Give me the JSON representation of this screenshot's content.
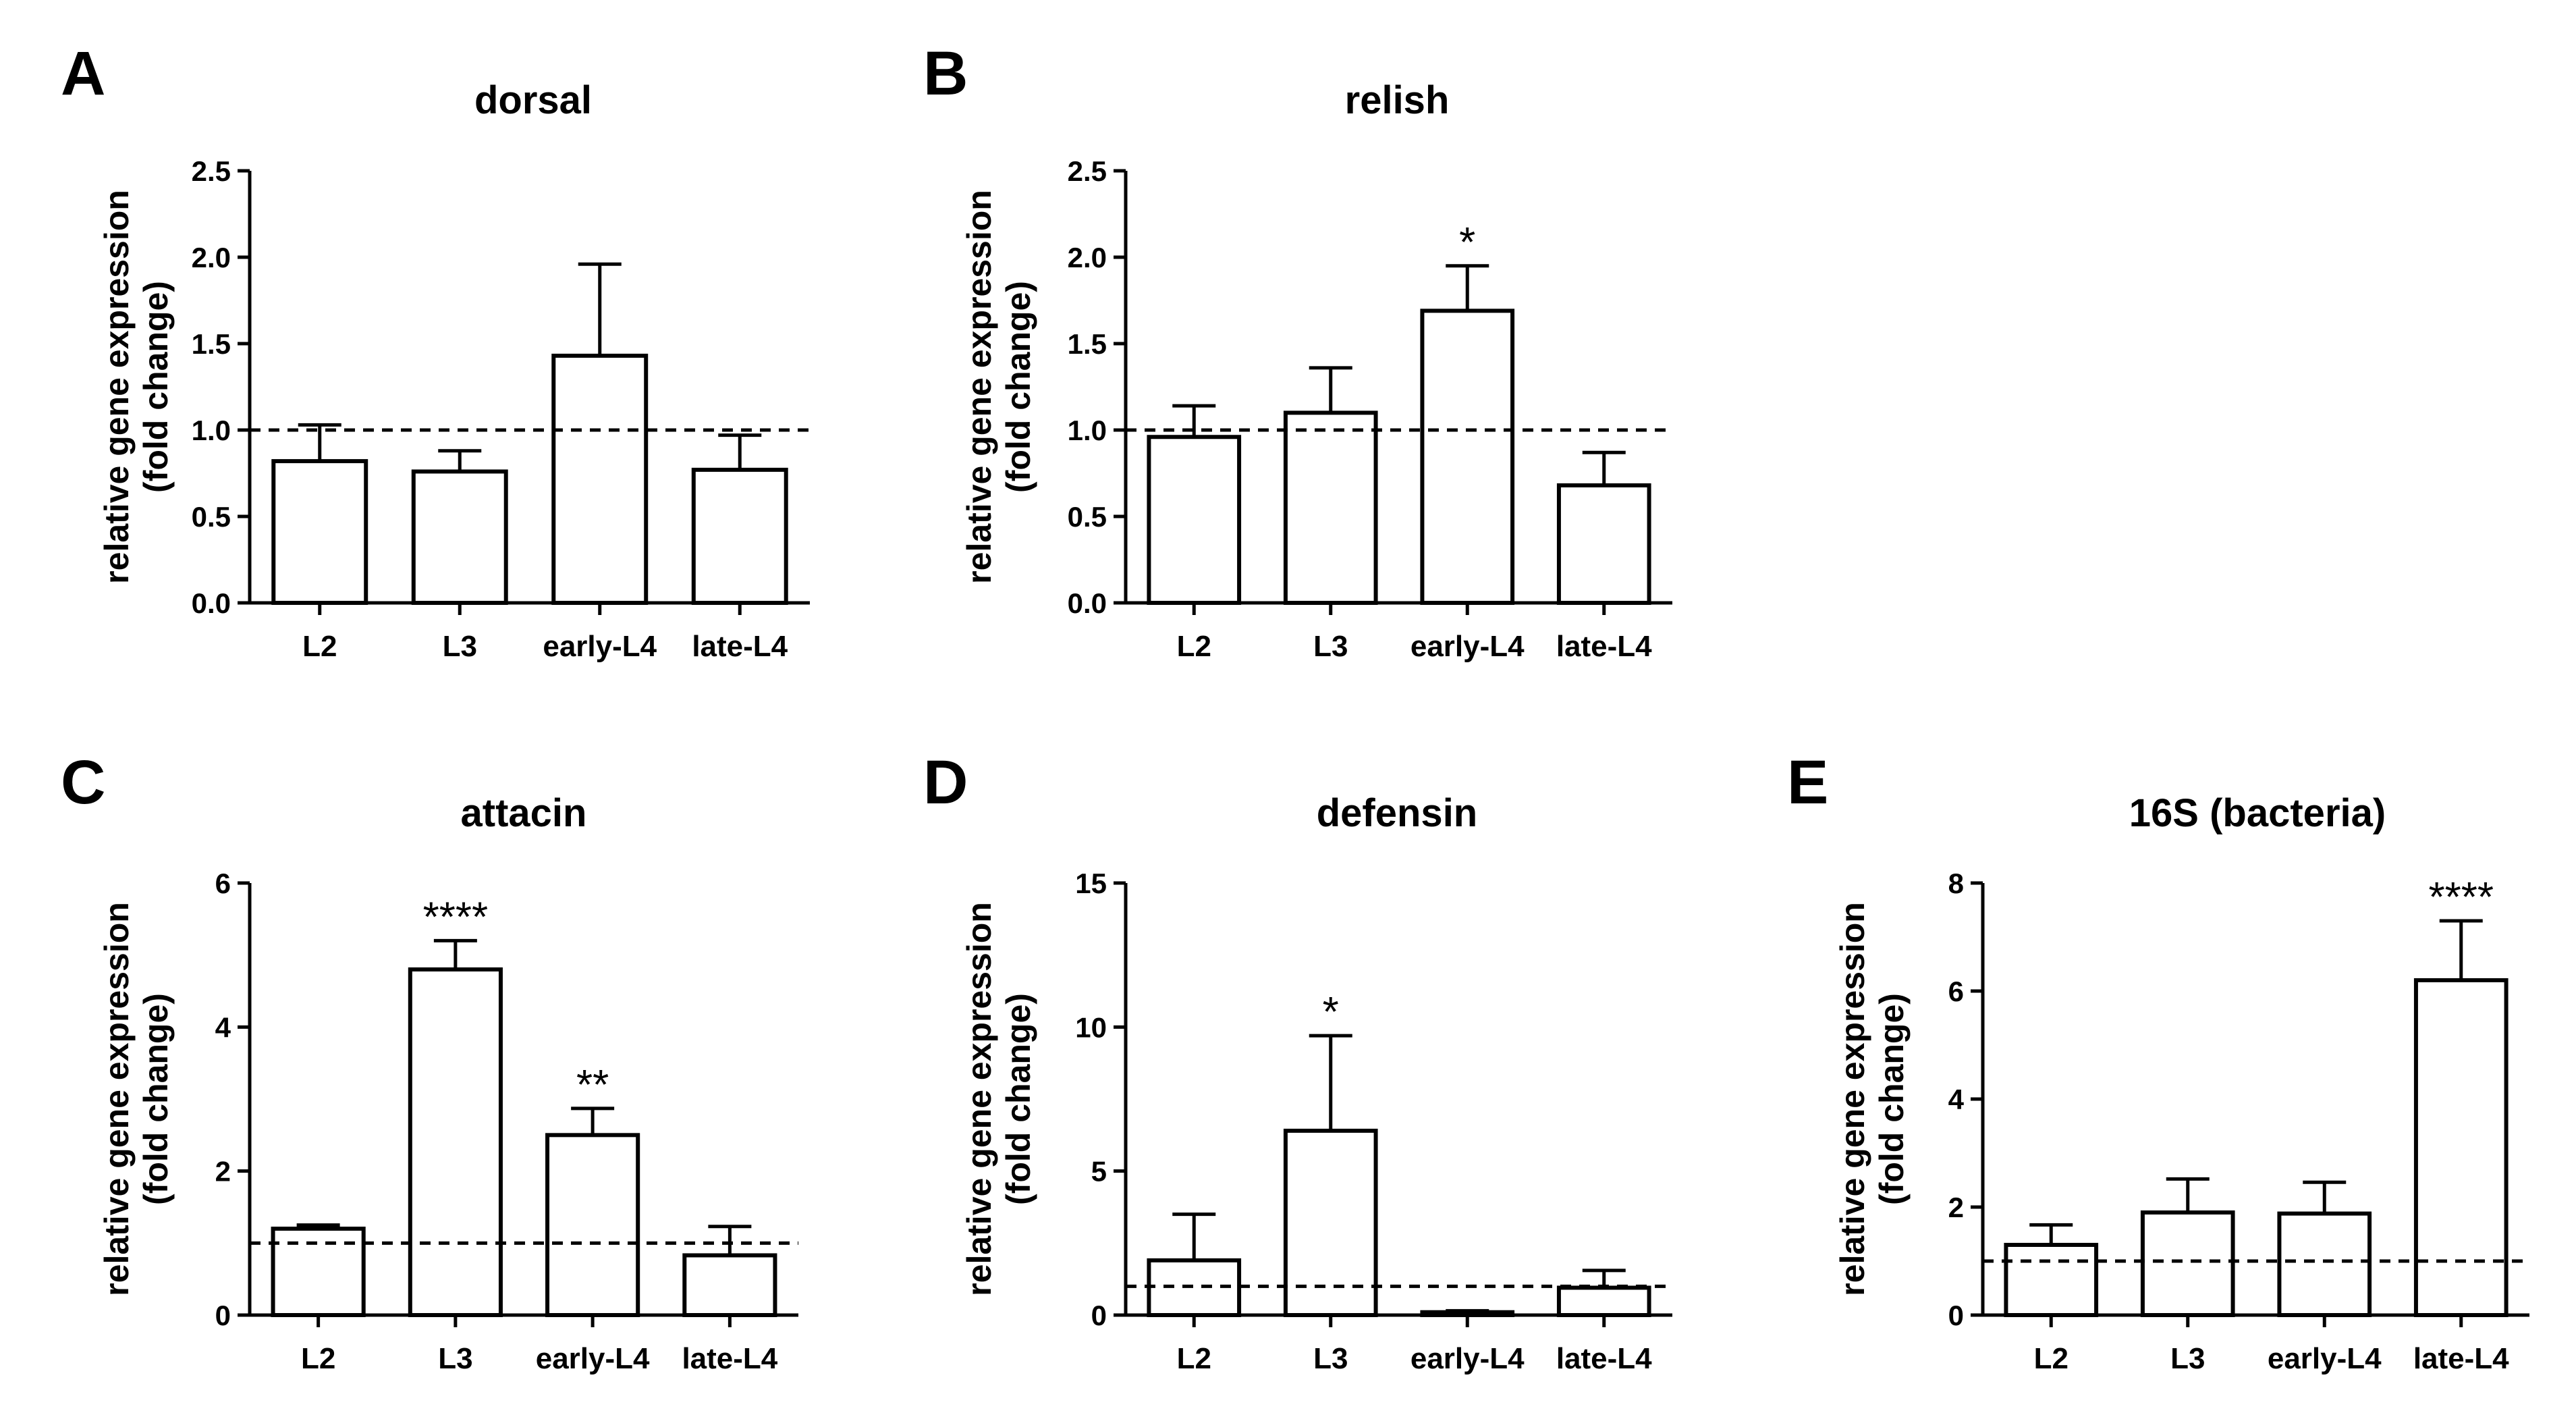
{
  "colors": {
    "ink": "#000000",
    "bar_fill": "#ffffff"
  },
  "chart_data": [
    {
      "letter": "A",
      "type": "bar",
      "title": "dorsal",
      "ylabel": [
        "relative gene expression",
        "(fold change)"
      ],
      "categories": [
        "L2",
        "L3",
        "early-L4",
        "late-L4"
      ],
      "values": [
        0.82,
        0.76,
        1.43,
        0.77
      ],
      "errors": [
        0.21,
        0.12,
        0.53,
        0.2
      ],
      "significance": [
        "",
        "",
        "",
        ""
      ],
      "ylim": [
        0,
        2.5
      ],
      "yticks": [
        0.0,
        0.5,
        1.0,
        1.5,
        2.0,
        2.5
      ],
      "ytick_labels": [
        "0.0",
        "0.5",
        "1.0",
        "1.5",
        "2.0",
        "2.5"
      ],
      "reference_line": 1.0
    },
    {
      "letter": "B",
      "type": "bar",
      "title": "relish",
      "ylabel": [
        "relative gene expression",
        "(fold change)"
      ],
      "categories": [
        "L2",
        "L3",
        "early-L4",
        "late-L4"
      ],
      "values": [
        0.96,
        1.1,
        1.69,
        0.68
      ],
      "errors": [
        0.18,
        0.26,
        0.26,
        0.19
      ],
      "significance": [
        "",
        "",
        "*",
        ""
      ],
      "ylim": [
        0,
        2.5
      ],
      "yticks": [
        0.0,
        0.5,
        1.0,
        1.5,
        2.0,
        2.5
      ],
      "ytick_labels": [
        "0.0",
        "0.5",
        "1.0",
        "1.5",
        "2.0",
        "2.5"
      ],
      "reference_line": 1.0
    },
    {
      "letter": "C",
      "type": "bar",
      "title": "attacin",
      "ylabel": [
        "relative gene expression",
        "(fold change)"
      ],
      "categories": [
        "L2",
        "L3",
        "early-L4",
        "late-L4"
      ],
      "values": [
        1.2,
        4.8,
        2.5,
        0.83
      ],
      "errors": [
        0.05,
        0.4,
        0.37,
        0.4
      ],
      "significance": [
        "",
        "****",
        "**",
        ""
      ],
      "ylim": [
        0,
        6
      ],
      "yticks": [
        0,
        2,
        4,
        6
      ],
      "ytick_labels": [
        "0",
        "2",
        "4",
        "6"
      ],
      "reference_line": 1.0
    },
    {
      "letter": "D",
      "type": "bar",
      "title": "defensin",
      "ylabel": [
        "relative gene expression",
        "(fold change)"
      ],
      "categories": [
        "L2",
        "L3",
        "early-L4",
        "late-L4"
      ],
      "values": [
        1.9,
        6.4,
        0.1,
        0.95
      ],
      "errors": [
        1.6,
        3.3,
        0.05,
        0.6
      ],
      "significance": [
        "",
        "*",
        "",
        ""
      ],
      "ylim": [
        0,
        15
      ],
      "yticks": [
        0,
        5,
        10,
        15
      ],
      "ytick_labels": [
        "0",
        "5",
        "10",
        "15"
      ],
      "reference_line": 1.0
    },
    {
      "letter": "E",
      "type": "bar",
      "title": "16S (bacteria)",
      "ylabel": [
        "relative gene expression",
        "(fold change)"
      ],
      "categories": [
        "L2",
        "L3",
        "early-L4",
        "late-L4"
      ],
      "values": [
        1.3,
        1.9,
        1.88,
        6.2
      ],
      "errors": [
        0.37,
        0.62,
        0.58,
        1.1
      ],
      "significance": [
        "",
        "",
        "",
        "****"
      ],
      "ylim": [
        0,
        8
      ],
      "yticks": [
        0,
        2,
        4,
        6,
        8
      ],
      "ytick_labels": [
        "0",
        "2",
        "4",
        "6",
        "8"
      ],
      "reference_line": 1.0
    }
  ]
}
